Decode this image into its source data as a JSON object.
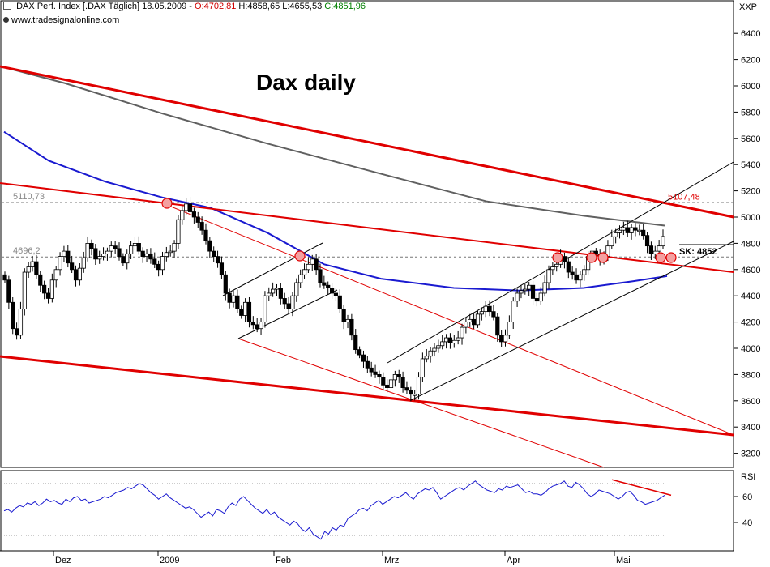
{
  "header": {
    "text": "DAX Perf. Index [.DAX  Täglich] 18.05.2009 - ",
    "open": "O:4702,81",
    "high": "H:4858,65",
    "low": "L:4655,53",
    "close": "C:4851,96",
    "symbol_tag": "XXP",
    "url": "www.tradesignalonline.com"
  },
  "chart_title": "Dax daily",
  "colors": {
    "up_candle": "#ffffff",
    "down_candle": "#000000",
    "trendline_red": "#e00000",
    "ma_long": "#606060",
    "ma_mid": "#1a1ad0",
    "rsi_line": "#1a1ad0"
  },
  "chart_data": [
    {
      "type": "candlestick",
      "xlabel": "",
      "ylabel": "",
      "ylim": [
        3150,
        6500
      ],
      "y_ticks": [
        "3200",
        "3400",
        "3600",
        "3800",
        "4000",
        "4200",
        "4400",
        "4600",
        "4800",
        "5000",
        "5200",
        "5400",
        "5600",
        "5800",
        "6000",
        "6200",
        "6400"
      ],
      "x_ticks": [
        "Dez",
        "2009",
        "Feb",
        "Mrz",
        "Apr",
        "Mai"
      ],
      "price_labels": [
        "5110,73",
        "4696,2",
        "5107,48"
      ],
      "annotation": "SK: 4852",
      "close_series": [
        4520,
        4350,
        4150,
        4100,
        4300,
        4580,
        4620,
        4660,
        4560,
        4480,
        4420,
        4380,
        4520,
        4600,
        4700,
        4740,
        4650,
        4600,
        4520,
        4610,
        4690,
        4800,
        4760,
        4680,
        4700,
        4720,
        4740,
        4780,
        4760,
        4700,
        4650,
        4720,
        4780,
        4800,
        4740,
        4700,
        4720,
        4680,
        4640,
        4600,
        4700,
        4730,
        4740,
        4800,
        4980,
        5050,
        5100,
        5040,
        5000,
        4960,
        4900,
        4820,
        4740,
        4700,
        4650,
        4560,
        4420,
        4350,
        4400,
        4300,
        4250,
        4350,
        4200,
        4180,
        4150,
        4200,
        4400,
        4420,
        4450,
        4460,
        4380,
        4340,
        4300,
        4400,
        4500,
        4560,
        4600,
        4640,
        4680,
        4600,
        4500,
        4480,
        4460,
        4420,
        4400,
        4300,
        4200,
        4220,
        4100,
        3990,
        3950,
        3900,
        3850,
        3820,
        3800,
        3780,
        3720,
        3700,
        3760,
        3800,
        3780,
        3700,
        3680,
        3650,
        3650,
        3780,
        3920,
        3940,
        3980,
        4000,
        4020,
        4050,
        4080,
        4040,
        4060,
        4080,
        4160,
        4200,
        4220,
        4180,
        4260,
        4280,
        4320,
        4280,
        4240,
        4100,
        4050,
        4100,
        4200,
        4360,
        4420,
        4440,
        4450,
        4480,
        4380,
        4360,
        4420,
        4500,
        4600,
        4620,
        4640,
        4700,
        4660,
        4580,
        4560,
        4520,
        4560,
        4600,
        4700,
        4740,
        4720,
        4680,
        4700,
        4780,
        4850,
        4880,
        4900,
        4920,
        4880,
        4920,
        4900,
        4900,
        4860,
        4780,
        4720,
        4740,
        4780,
        4852
      ],
      "ma_long": [
        6150,
        5450,
        5005,
        4935
      ],
      "ma_mid": [
        5650,
        5100,
        4690,
        4440,
        4550
      ],
      "channel_lines": [
        "upper-long-down",
        "mid-down",
        "lower-long-down",
        "rising-channel",
        "feb-channel"
      ]
    },
    {
      "type": "line",
      "ylabel": "RSI",
      "y_ticks": [
        "40",
        "60"
      ],
      "ylim": [
        20,
        85
      ],
      "values": [
        49,
        50,
        48,
        51,
        53,
        52,
        55,
        54,
        56,
        53,
        55,
        58,
        56,
        57,
        55,
        54,
        58,
        56,
        59,
        60,
        57,
        58,
        55,
        56,
        57,
        58,
        60,
        59,
        61,
        63,
        64,
        65,
        67,
        66,
        68,
        70,
        69,
        66,
        63,
        61,
        58,
        60,
        62,
        59,
        57,
        55,
        53,
        51,
        52,
        50,
        47,
        44,
        46,
        48,
        45,
        50,
        49,
        47,
        52,
        55,
        53,
        58,
        60,
        57,
        54,
        51,
        49,
        47,
        50,
        46,
        48,
        44,
        42,
        40,
        38,
        41,
        39,
        35,
        33,
        36,
        31,
        29,
        27,
        33,
        31,
        36,
        34,
        38,
        37,
        43,
        45,
        47,
        50,
        51,
        49,
        53,
        55,
        57,
        54,
        56,
        58,
        60,
        59,
        61,
        63,
        60,
        58,
        62,
        64,
        66,
        65,
        67,
        63,
        58,
        60,
        62,
        64,
        66,
        67,
        65,
        68,
        70,
        72,
        69,
        67,
        65,
        64,
        63,
        66,
        65,
        68,
        67,
        68,
        69,
        66,
        63,
        64,
        62,
        62,
        61,
        63,
        66,
        68,
        69,
        70,
        72,
        68,
        67,
        71,
        69,
        66,
        62,
        60,
        62,
        65,
        64,
        63,
        62,
        60,
        58,
        60,
        63,
        64,
        61,
        57,
        56,
        54,
        55,
        56,
        57,
        59,
        61
      ],
      "reference_levels": [
        70,
        30
      ]
    }
  ]
}
